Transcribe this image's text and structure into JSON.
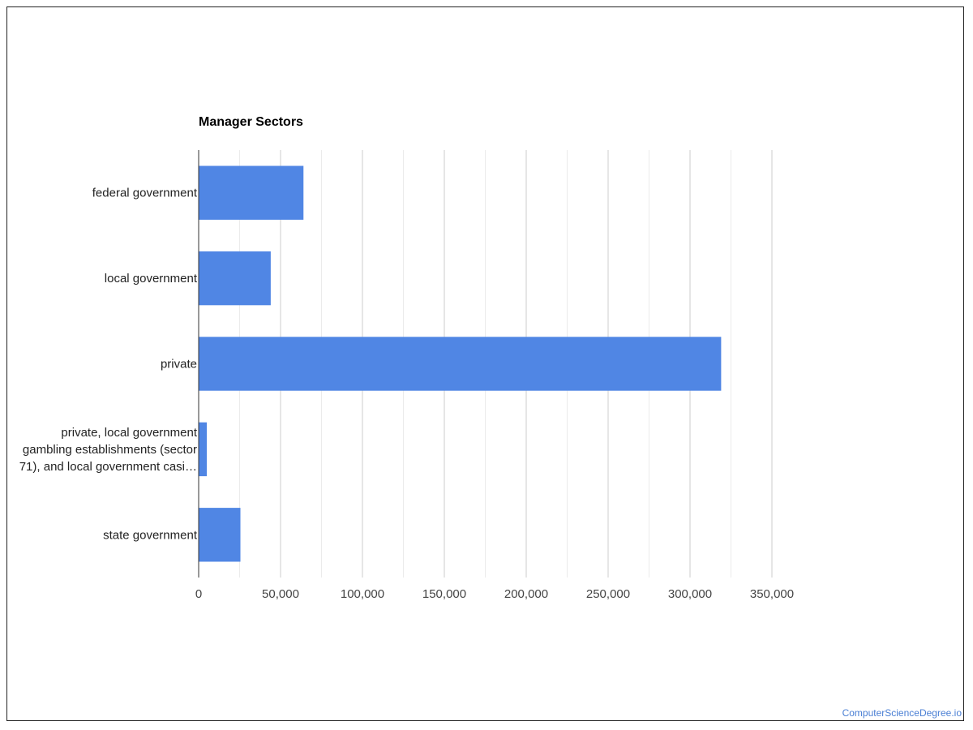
{
  "chart_data": {
    "type": "bar",
    "orientation": "horizontal",
    "title": "Manager Sectors",
    "categories": [
      [
        "federal government"
      ],
      [
        "local government"
      ],
      [
        "private"
      ],
      [
        "private, local government",
        "gambling establishments (sector",
        "71), and local government casi…"
      ],
      [
        "state government"
      ]
    ],
    "values": [
      64000,
      44000,
      319000,
      5000,
      25500
    ],
    "x_ticks": [
      "0",
      "50,000",
      "100,000",
      "150,000",
      "200,000",
      "250,000",
      "300,000",
      "350,000"
    ],
    "xlim": [
      0,
      350000
    ],
    "grid": true,
    "bar_color": "#5086e4",
    "grid_color": "#cccccc",
    "minor_grid_color": "#ebebeb"
  },
  "watermark": "ComputerScienceDegree.io"
}
